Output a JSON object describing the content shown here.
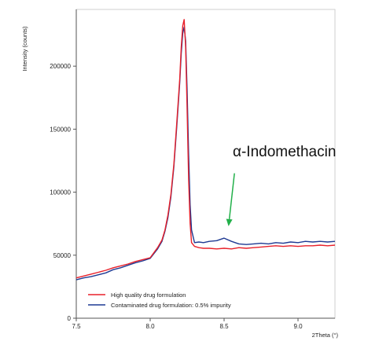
{
  "chart_data": {
    "type": "line",
    "xlabel": "2Theta (°)",
    "ylabel": "Intensity (counts)",
    "xlim": [
      7.5,
      9.25
    ],
    "ylim": [
      0,
      245000
    ],
    "xticks": [
      7.5,
      8.0,
      8.5,
      9.0
    ],
    "xtick_labels": [
      "7.5",
      "8.0",
      "8.5",
      "9.0"
    ],
    "yticks": [
      0,
      50000,
      100000,
      150000,
      200000
    ],
    "ytick_labels": [
      "0",
      "50000",
      "100000",
      "150000",
      "200000"
    ],
    "grid": false,
    "legend_position": "bottom-left",
    "annotation": {
      "text": "α-Indomethacin",
      "arrow_color": "#22b04a",
      "arrow_tail": [
        8.57,
        115000
      ],
      "arrow_head": [
        8.53,
        73000
      ]
    },
    "series": [
      {
        "name": "High quality drug formulation",
        "color": "#e8202a",
        "x": [
          7.5,
          7.55,
          7.6,
          7.65,
          7.7,
          7.75,
          7.8,
          7.85,
          7.9,
          7.95,
          8.0,
          8.05,
          8.08,
          8.1,
          8.12,
          8.14,
          8.16,
          8.18,
          8.2,
          8.21,
          8.22,
          8.23,
          8.24,
          8.25,
          8.26,
          8.27,
          8.28,
          8.3,
          8.33,
          8.36,
          8.4,
          8.45,
          8.5,
          8.55,
          8.6,
          8.65,
          8.7,
          8.75,
          8.8,
          8.85,
          8.9,
          8.95,
          9.0,
          9.05,
          9.1,
          9.15,
          9.2,
          9.25
        ],
        "values": [
          32000,
          33500,
          35000,
          36500,
          38000,
          40000,
          41500,
          43000,
          45000,
          46500,
          48000,
          56000,
          62000,
          70000,
          82000,
          98000,
          122000,
          155000,
          190000,
          215000,
          232000,
          237000,
          215000,
          165000,
          110000,
          75000,
          60000,
          57000,
          56000,
          55500,
          55500,
          55000,
          55500,
          55000,
          56000,
          55500,
          56000,
          56500,
          57000,
          57500,
          57000,
          57500,
          57000,
          57500,
          57500,
          58000,
          57500,
          58000
        ]
      },
      {
        "name": "Contaminated drug formulation: 0.5% impurity",
        "color": "#1f3a93",
        "x": [
          7.5,
          7.55,
          7.6,
          7.65,
          7.7,
          7.75,
          7.8,
          7.85,
          7.9,
          7.95,
          8.0,
          8.05,
          8.08,
          8.1,
          8.12,
          8.14,
          8.16,
          8.18,
          8.2,
          8.21,
          8.22,
          8.23,
          8.24,
          8.25,
          8.26,
          8.27,
          8.28,
          8.3,
          8.33,
          8.36,
          8.4,
          8.45,
          8.5,
          8.55,
          8.6,
          8.65,
          8.7,
          8.75,
          8.8,
          8.85,
          8.9,
          8.95,
          9.0,
          9.05,
          9.1,
          9.15,
          9.2,
          9.25
        ],
        "values": [
          30500,
          32000,
          33000,
          34500,
          36000,
          38500,
          40000,
          42000,
          44000,
          45500,
          47500,
          55000,
          61000,
          69000,
          80000,
          96000,
          120000,
          152000,
          187000,
          210000,
          226000,
          231000,
          220000,
          180000,
          130000,
          90000,
          70000,
          60000,
          60500,
          60000,
          61000,
          61500,
          63500,
          61000,
          59000,
          58500,
          59000,
          59500,
          59000,
          60000,
          59500,
          60500,
          60000,
          61000,
          60500,
          61000,
          60500,
          61000
        ]
      }
    ]
  }
}
